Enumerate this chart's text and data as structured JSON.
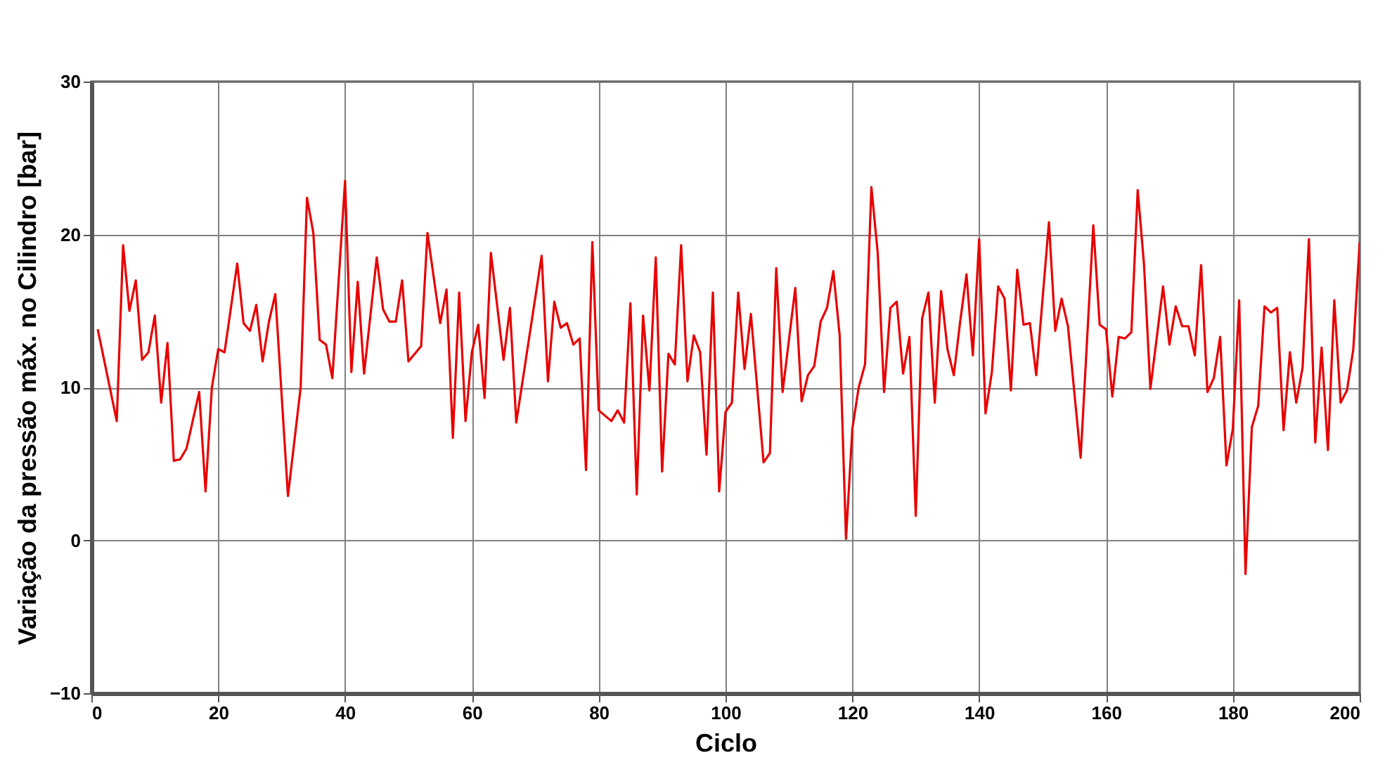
{
  "chart_data": {
    "type": "line",
    "xlabel": "Ciclo",
    "ylabel": "Variação da pressão máx. no Cilindro  [bar]",
    "xlim": [
      0,
      200
    ],
    "xticks": [
      0,
      20,
      40,
      60,
      80,
      100,
      120,
      140,
      160,
      180,
      200
    ],
    "ylim": [
      -10,
      30
    ],
    "yticks": [
      -10,
      0,
      10,
      20,
      30
    ],
    "grid": true,
    "marker": "none",
    "line_style": "solid",
    "series": [
      {
        "color": "#e80000",
        "x": [
          1,
          4,
          5,
          6,
          7,
          8,
          9,
          10,
          11,
          12,
          13,
          14,
          15,
          17,
          18,
          19,
          20,
          21,
          23,
          24,
          25,
          26,
          27,
          28,
          29,
          31,
          33,
          34,
          35,
          36,
          37,
          38,
          40,
          41,
          42,
          43,
          45,
          46,
          47,
          48,
          49,
          50,
          52,
          53,
          55,
          56,
          57,
          58,
          59,
          60,
          61,
          62,
          63,
          65,
          66,
          67,
          71,
          72,
          73,
          74,
          75,
          76,
          77,
          78,
          79,
          80,
          82,
          83,
          84,
          85,
          86,
          87,
          88,
          89,
          90,
          91,
          92,
          93,
          94,
          95,
          96,
          97,
          98,
          99,
          100,
          101,
          102,
          103,
          104,
          106,
          107,
          108,
          109,
          111,
          112,
          113,
          114,
          115,
          116,
          117,
          118,
          119,
          120,
          121,
          122,
          123,
          124,
          125,
          126,
          127,
          128,
          129,
          130,
          131,
          132,
          133,
          134,
          135,
          136,
          137,
          138,
          139,
          140,
          141,
          142,
          143,
          144,
          145,
          146,
          147,
          148,
          149,
          151,
          152,
          153,
          154,
          156,
          158,
          159,
          160,
          161,
          162,
          163,
          164,
          165,
          166,
          167,
          169,
          170,
          171,
          172,
          173,
          174,
          175,
          176,
          177,
          178,
          179,
          180,
          181,
          182,
          183,
          184,
          185,
          186,
          187,
          188,
          189,
          190,
          191,
          192,
          193,
          194,
          195,
          196,
          197,
          198,
          199,
          200
        ],
        "values": [
          13.8,
          7.8,
          19.3,
          15.0,
          17.0,
          11.8,
          12.3,
          14.7,
          9.0,
          12.9,
          5.2,
          5.3,
          6.0,
          9.7,
          3.2,
          10.0,
          12.5,
          12.3,
          18.1,
          14.2,
          13.7,
          15.4,
          11.7,
          14.3,
          16.1,
          2.9,
          10.0,
          22.4,
          20.1,
          13.1,
          12.8,
          10.6,
          23.5,
          11.0,
          16.9,
          10.9,
          18.5,
          15.1,
          14.3,
          14.3,
          17.0,
          11.7,
          12.7,
          20.1,
          14.2,
          16.4,
          6.7,
          16.2,
          7.8,
          12.3,
          14.1,
          9.3,
          18.8,
          11.8,
          15.2,
          7.7,
          18.6,
          10.4,
          15.6,
          13.9,
          14.2,
          12.8,
          13.2,
          4.6,
          19.5,
          8.5,
          7.8,
          8.5,
          7.7,
          15.5,
          3.0,
          14.7,
          9.8,
          18.5,
          4.5,
          12.2,
          11.5,
          19.3,
          10.4,
          13.4,
          12.3,
          5.6,
          16.2,
          3.2,
          8.4,
          9.0,
          16.2,
          11.2,
          14.8,
          5.1,
          5.7,
          17.8,
          9.7,
          16.5,
          9.1,
          10.8,
          11.4,
          14.3,
          15.2,
          17.6,
          13.4,
          0.1,
          7.3,
          10.0,
          11.5,
          23.1,
          18.8,
          9.7,
          15.2,
          15.6,
          10.9,
          13.3,
          1.6,
          14.5,
          16.2,
          9.0,
          16.3,
          12.5,
          10.8,
          14.3,
          17.4,
          12.1,
          19.7,
          8.3,
          11.0,
          16.6,
          15.8,
          9.8,
          17.7,
          14.1,
          14.2,
          10.8,
          20.8,
          13.7,
          15.8,
          14.0,
          5.4,
          20.6,
          14.1,
          13.8,
          9.4,
          13.3,
          13.2,
          13.6,
          22.9,
          18.0,
          9.9,
          16.6,
          12.8,
          15.3,
          14.0,
          14.0,
          12.1,
          18.0,
          9.7,
          10.6,
          13.3,
          4.9,
          7.3,
          15.7,
          -2.2,
          7.4,
          8.8,
          15.3,
          14.9,
          15.2,
          7.2,
          12.3,
          9.0,
          11.3,
          19.7,
          6.4,
          12.6,
          5.9,
          15.7,
          9.0,
          9.8,
          12.5,
          19.5
        ]
      }
    ]
  }
}
